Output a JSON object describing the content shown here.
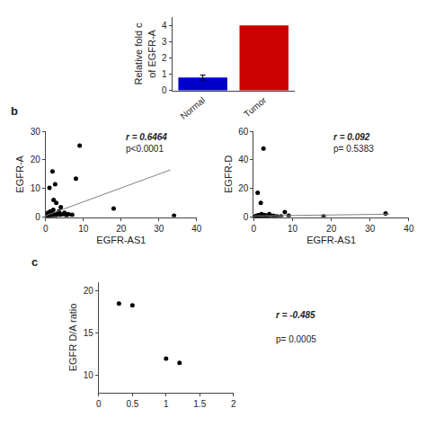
{
  "chart_data": [
    {
      "type": "bar",
      "ylabel": "Relative fold c\nof EGFR-A",
      "categories": [
        "Normal",
        "Tumor"
      ],
      "values": [
        0.8,
        4.0
      ],
      "colors": [
        "#0000cc",
        "#cc0000"
      ],
      "errors": [
        0.15,
        null
      ],
      "ylim": [
        0,
        4.5
      ],
      "yticks": [
        0,
        1,
        2,
        3,
        4
      ],
      "grid": false
    },
    {
      "type": "scatter",
      "title": "b",
      "xlabel": "EGFR-AS1",
      "ylabel": "EGFR-A",
      "series": [
        {
          "type": "scatter",
          "color": "#000000",
          "x": [
            0.5,
            1.0,
            1.2,
            1.5,
            1.8,
            2.0,
            2.1,
            2.5,
            2.8,
            3.0,
            3.2,
            3.5,
            4.0,
            4.5,
            5.0,
            5.5,
            6.0,
            7.0,
            8.0,
            9.0,
            18.0,
            34.0,
            0.3,
            0.4,
            0.6,
            0.7,
            0.9,
            1.1,
            1.3,
            1.6,
            2.2,
            2.6,
            3.8
          ],
          "values": [
            1.0,
            10.2,
            2.0,
            1.5,
            16.0,
            2.5,
            6.0,
            11.5,
            5.0,
            1.0,
            1.2,
            2.0,
            3.5,
            1.0,
            1.5,
            0.5,
            1.0,
            0.8,
            13.5,
            25.0,
            3.0,
            0.5,
            0.5,
            0.8,
            1.5,
            0.5,
            1.2,
            0.5,
            0.8,
            0.3,
            1.0,
            0.2,
            0.8
          ]
        },
        {
          "type": "line",
          "color": "gray",
          "x": [
            0,
            33
          ],
          "values": [
            0.5,
            16.5
          ]
        }
      ],
      "xlim": [
        0,
        40
      ],
      "ylim": [
        0,
        30
      ],
      "xticks": [
        0,
        10,
        20,
        30,
        40
      ],
      "yticks": [
        0,
        10,
        20,
        30
      ],
      "annotations": [
        "r = 0.6464",
        "p<0.0001"
      ],
      "grid": false
    },
    {
      "type": "scatter",
      "xlabel": "EGFR-AS1",
      "ylabel": "EGFR-D",
      "series": [
        {
          "type": "scatter",
          "color": "#000000",
          "x": [
            0.5,
            1.0,
            1.2,
            1.5,
            1.8,
            2.0,
            2.1,
            2.5,
            2.8,
            3.0,
            3.2,
            3.5,
            4.0,
            4.5,
            5.0,
            5.5,
            6.0,
            7.0,
            8.0,
            9.0,
            18.0,
            34.0,
            0.3,
            0.4,
            0.6,
            0.7,
            0.9,
            1.1,
            1.3,
            1.6,
            2.2,
            2.6,
            3.8
          ],
          "values": [
            0.5,
            17.0,
            1.5,
            0.8,
            10.0,
            2.0,
            1.5,
            48.0,
            1.5,
            0.5,
            1.0,
            0.5,
            2.0,
            0.8,
            1.0,
            0.3,
            0.5,
            0.5,
            3.5,
            1.0,
            0.5,
            2.5,
            0.3,
            0.5,
            0.8,
            0.3,
            0.5,
            0.4,
            0.3,
            0.2,
            0.5,
            0.2,
            0.3
          ]
        },
        {
          "type": "line",
          "color": "gray",
          "x": [
            0,
            35
          ],
          "values": [
            0.8,
            2.0
          ]
        }
      ],
      "xlim": [
        0,
        40
      ],
      "ylim": [
        0,
        60
      ],
      "xticks": [
        0,
        10,
        20,
        30,
        40
      ],
      "yticks": [
        0,
        20,
        40,
        60
      ],
      "annotations": [
        "r = 0.092",
        "p= 0.5383"
      ],
      "grid": false
    },
    {
      "type": "scatter",
      "title": "c",
      "ylabel": "EGFR D/A ratio",
      "series": [
        {
          "type": "scatter",
          "color": "#000000",
          "x": [
            0.3,
            0.5,
            1.0,
            1.2
          ],
          "values": [
            18.5,
            18.3,
            12.0,
            11.5
          ]
        }
      ],
      "xlim": [
        0,
        2
      ],
      "ylim": [
        8,
        21
      ],
      "xticks": [
        0,
        0.5,
        1,
        1.5,
        2
      ],
      "yticks": [
        10,
        15,
        20
      ],
      "annotations": [
        "r = -0.485",
        "p= 0.0005"
      ],
      "grid": false
    }
  ]
}
